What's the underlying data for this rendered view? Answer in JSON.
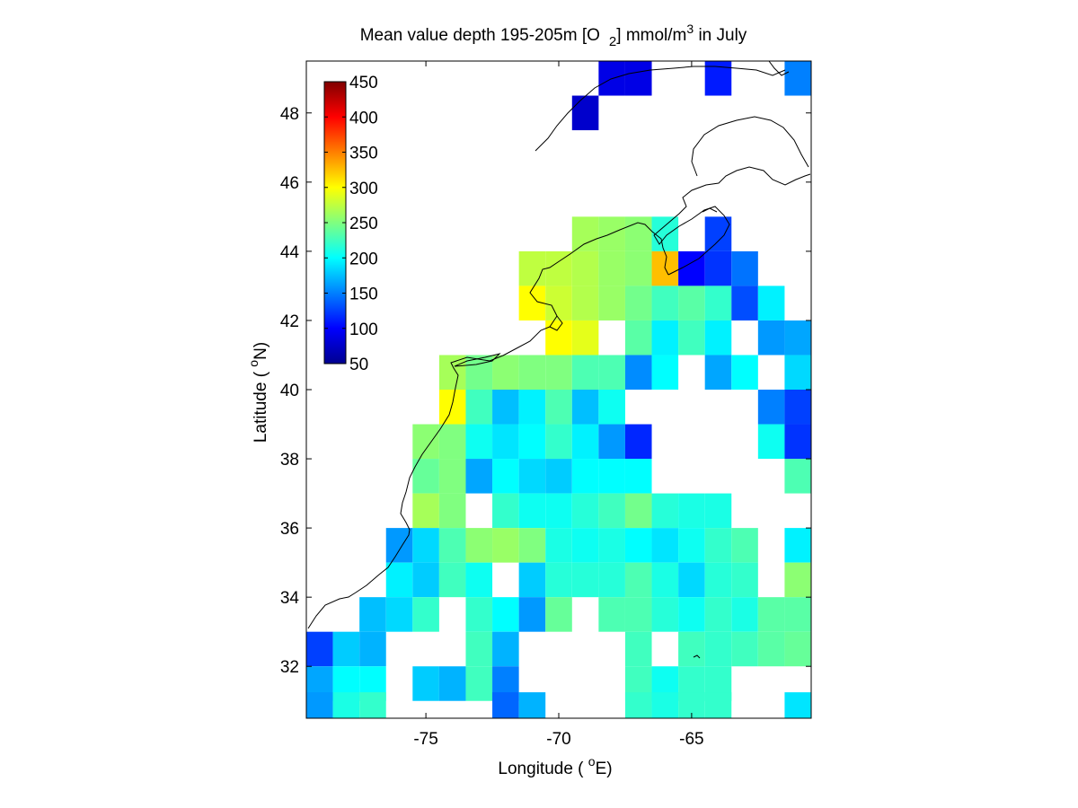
{
  "chart_data": {
    "type": "heatmap",
    "title": {
      "text": "Mean value depth 195-205m [O",
      "sub": "2",
      "unit": "] mmol/m",
      "sup": "3",
      "suffix": " in July"
    },
    "xlabel": {
      "text": "Longitude ( ",
      "sup": "o",
      "suffix": "E)"
    },
    "ylabel": {
      "text": "Latitude ( ",
      "sup": "o",
      "suffix": "N)"
    },
    "xlim": [
      -79.5,
      -60.5
    ],
    "ylim": [
      30.5,
      49.5
    ],
    "xticks": [
      -75,
      -70,
      -65
    ],
    "yticks": [
      32,
      34,
      36,
      38,
      40,
      42,
      44,
      46,
      48
    ],
    "colorbar": {
      "range": [
        50,
        450
      ],
      "ticks": [
        50,
        100,
        150,
        200,
        250,
        300,
        350,
        400,
        450
      ],
      "colormap": "jet",
      "placement": "top-left inside axes"
    },
    "cell_size_deg": 1,
    "cells": [
      {
        "lat": 49,
        "lons": [
          -68,
          -67,
          -64,
          -61
        ],
        "values": [
          90,
          90,
          110,
          150
        ]
      },
      {
        "lat": 48,
        "lons": [
          -69
        ],
        "values": [
          80
        ]
      },
      {
        "lat": 44.5,
        "lons": [
          -69,
          -68,
          -67,
          -66,
          -64
        ],
        "values": [
          265,
          260,
          255,
          215,
          125
        ]
      },
      {
        "lat": 43.5,
        "lons": [
          -71,
          -70,
          -69,
          -68,
          -67,
          -66,
          -65,
          -64,
          -63
        ],
        "values": [
          275,
          275,
          270,
          260,
          255,
          325,
          100,
          120,
          145
        ]
      },
      {
        "lat": 42.5,
        "lons": [
          -71,
          -70,
          -69,
          -68,
          -67,
          -66,
          -65,
          -64,
          -63,
          -62
        ],
        "values": [
          300,
          280,
          270,
          260,
          245,
          225,
          235,
          220,
          130,
          195
        ]
      },
      {
        "lat": 41.5,
        "lons": [
          -70,
          -69,
          -67,
          -66,
          -65,
          -64,
          -62,
          -61
        ],
        "values": [
          300,
          290,
          235,
          195,
          225,
          195,
          160,
          165
        ]
      },
      {
        "lat": 40.5,
        "lons": [
          -74,
          -73,
          -72,
          -71,
          -70,
          -69,
          -68,
          -67,
          -66,
          -64,
          -63,
          -61
        ],
        "values": [
          265,
          245,
          255,
          250,
          250,
          230,
          230,
          155,
          200,
          165,
          200,
          185
        ]
      },
      {
        "lat": 39.5,
        "lons": [
          -74,
          -73,
          -72,
          -71,
          -70,
          -69,
          -68,
          -62,
          -61
        ],
        "values": [
          300,
          225,
          175,
          195,
          230,
          175,
          205,
          150,
          125
        ]
      },
      {
        "lat": 38.5,
        "lons": [
          -75,
          -74,
          -73,
          -72,
          -71,
          -70,
          -69,
          -68,
          -67,
          -62,
          -61
        ],
        "values": [
          255,
          250,
          205,
          190,
          200,
          220,
          195,
          160,
          115,
          205,
          120
        ]
      },
      {
        "lat": 37.5,
        "lons": [
          -75,
          -74,
          -73,
          -72,
          -71,
          -70,
          -69,
          -68,
          -67,
          -61
        ],
        "values": [
          240,
          250,
          165,
          200,
          185,
          180,
          200,
          200,
          200,
          230
        ]
      },
      {
        "lat": 36.5,
        "lons": [
          -75,
          -74,
          -72,
          -71,
          -70,
          -69,
          -68,
          -67,
          -66,
          -65,
          -64
        ],
        "values": [
          265,
          250,
          220,
          205,
          205,
          215,
          225,
          245,
          215,
          210,
          210
        ]
      },
      {
        "lat": 35.5,
        "lons": [
          -76,
          -75,
          -74,
          -73,
          -72,
          -71,
          -70,
          -69,
          -68,
          -67,
          -66,
          -65,
          -64,
          -63,
          -61
        ],
        "values": [
          160,
          185,
          230,
          255,
          260,
          250,
          210,
          205,
          210,
          200,
          190,
          205,
          220,
          230,
          195
        ]
      },
      {
        "lat": 34.5,
        "lons": [
          -76,
          -75,
          -74,
          -73,
          -71,
          -70,
          -69,
          -68,
          -67,
          -66,
          -65,
          -64,
          -63,
          -61
        ],
        "values": [
          195,
          180,
          225,
          205,
          180,
          215,
          215,
          215,
          230,
          210,
          185,
          215,
          220,
          255
        ]
      },
      {
        "lat": 33.5,
        "lons": [
          -77,
          -76,
          -75,
          -73,
          -72,
          -71,
          -70,
          -68,
          -67,
          -66,
          -65,
          -64,
          -63,
          -62,
          -61
        ],
        "values": [
          175,
          185,
          220,
          220,
          200,
          160,
          240,
          230,
          230,
          215,
          205,
          220,
          210,
          235,
          235
        ]
      },
      {
        "lat": 32.5,
        "lons": [
          -79,
          -78,
          -77,
          -73,
          -72,
          -67,
          -65,
          -64,
          -63,
          -62,
          -61
        ],
        "values": [
          125,
          180,
          170,
          225,
          170,
          225,
          225,
          220,
          225,
          235,
          240
        ]
      },
      {
        "lat": 31.5,
        "lons": [
          -79,
          -78,
          -77,
          -75,
          -74,
          -73,
          -72,
          -67,
          -66,
          -65,
          -64
        ],
        "values": [
          165,
          200,
          200,
          180,
          170,
          225,
          150,
          225,
          205,
          220,
          220
        ]
      },
      {
        "lat": 30.75,
        "lons": [
          -79,
          -78,
          -77,
          -72,
          -71,
          -67,
          -66,
          -65,
          -64,
          -61
        ],
        "values": [
          160,
          210,
          220,
          140,
          170,
          220,
          210,
          220,
          220,
          190
        ]
      }
    ]
  }
}
